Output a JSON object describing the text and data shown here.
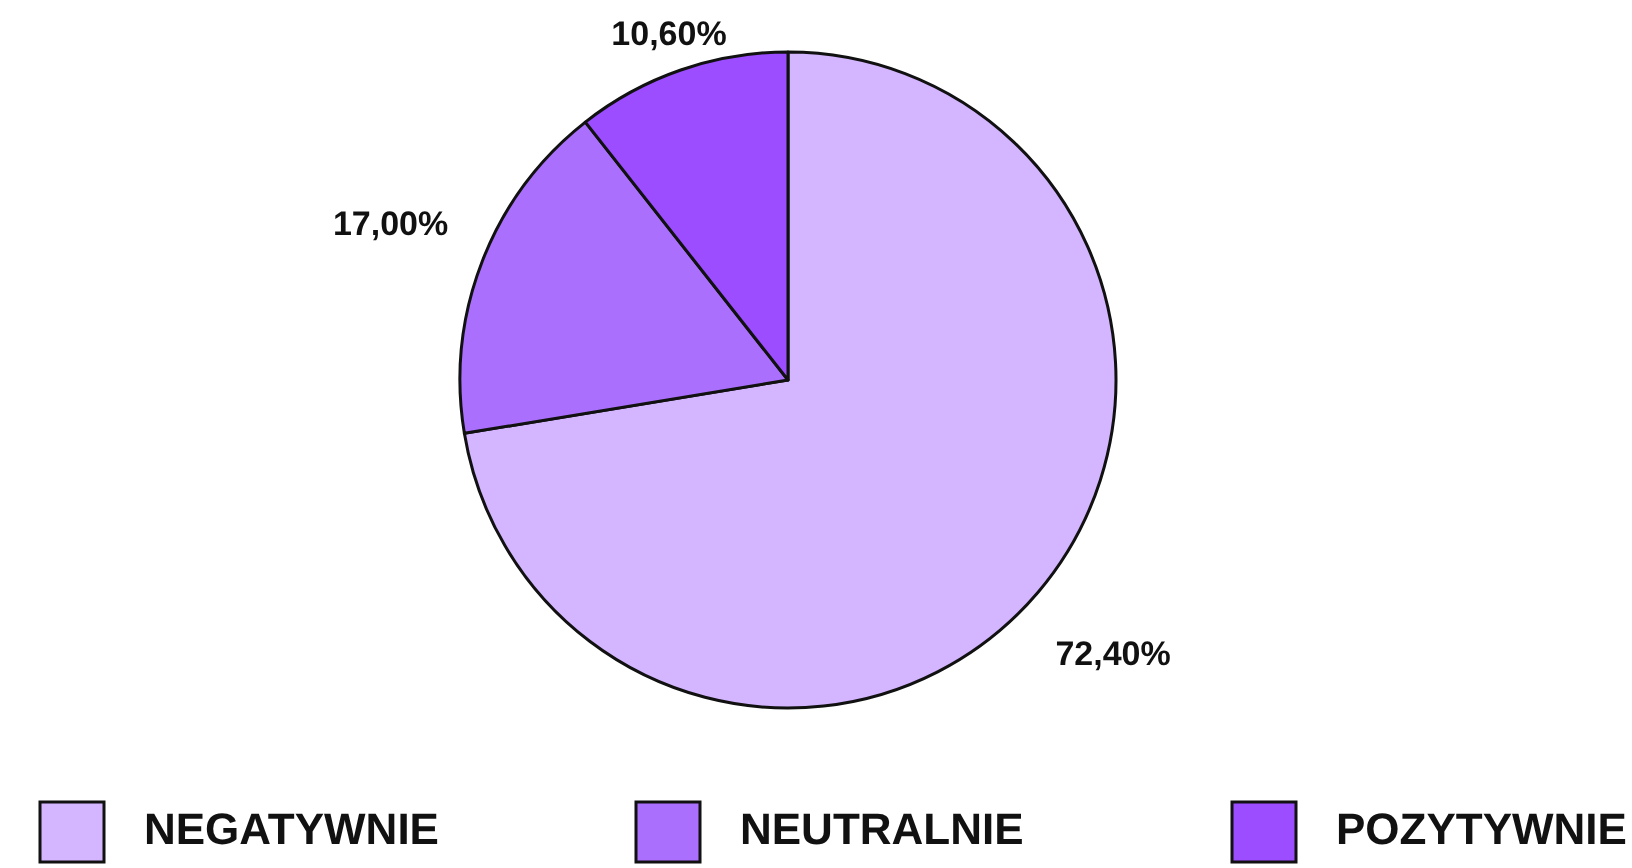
{
  "chart_data": {
    "type": "pie",
    "categories": [
      "NEGATYWNIE",
      "NEUTRALNIE",
      "POZYTYWNIE"
    ],
    "values": [
      72.4,
      17.0,
      10.6
    ],
    "colors": [
      "#d4b5ff",
      "#aa70fd",
      "#9b4dff"
    ],
    "value_labels": [
      "72,40%",
      "17,00%",
      "10,60%"
    ],
    "legend": "bottom"
  }
}
